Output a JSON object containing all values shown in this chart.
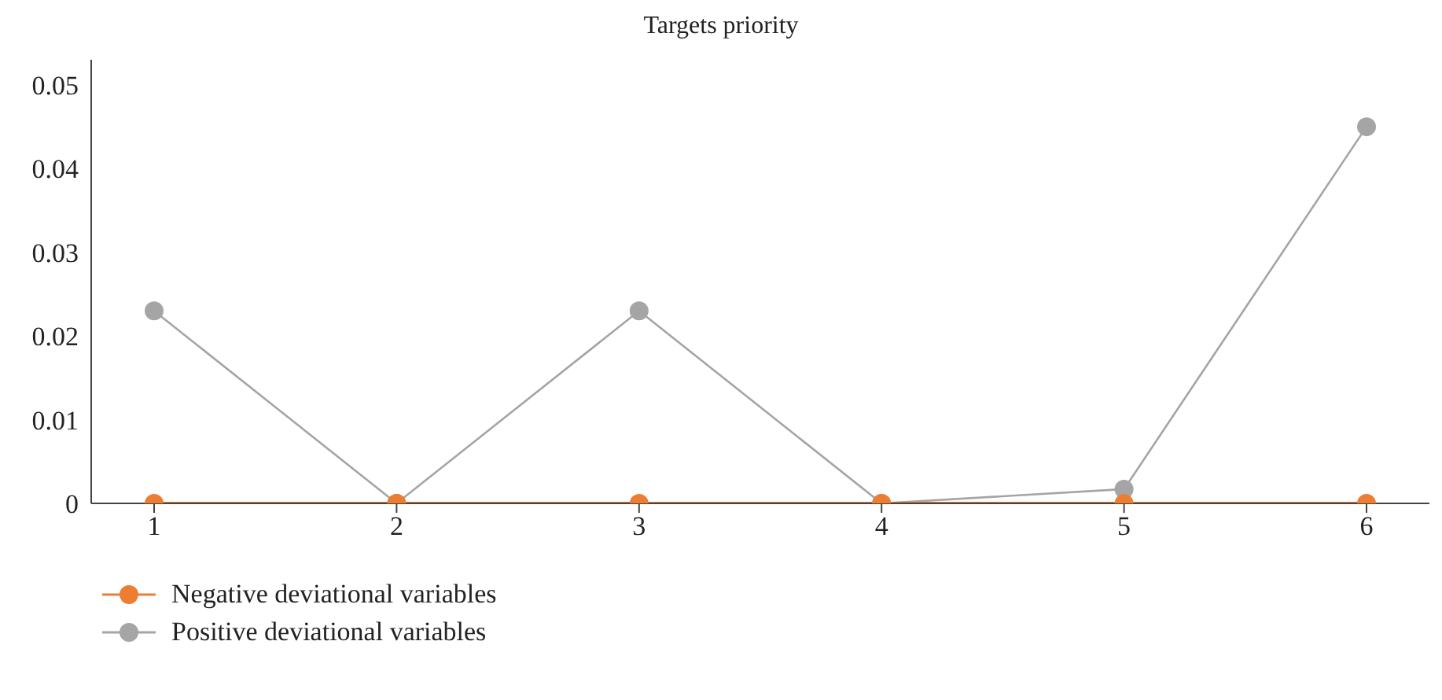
{
  "chart_data": {
    "type": "line",
    "title": "Targets priority",
    "categories": [
      "1",
      "2",
      "3",
      "4",
      "5",
      "6"
    ],
    "series": [
      {
        "name": "Negative deviational variables",
        "color": "#ed7d31",
        "values": [
          0,
          0,
          0,
          0,
          0,
          0
        ]
      },
      {
        "name": "Positive deviational variables",
        "color": "#a5a5a5",
        "values": [
          0.023,
          0,
          0.023,
          0,
          0.0017,
          0.045
        ]
      }
    ],
    "ylim": [
      0,
      0.053
    ],
    "yticks": [
      0,
      0.01,
      0.02,
      0.03,
      0.04,
      0.05
    ],
    "grid": false,
    "legend": "bottom left",
    "marker": "circle",
    "line_style": "solid"
  }
}
